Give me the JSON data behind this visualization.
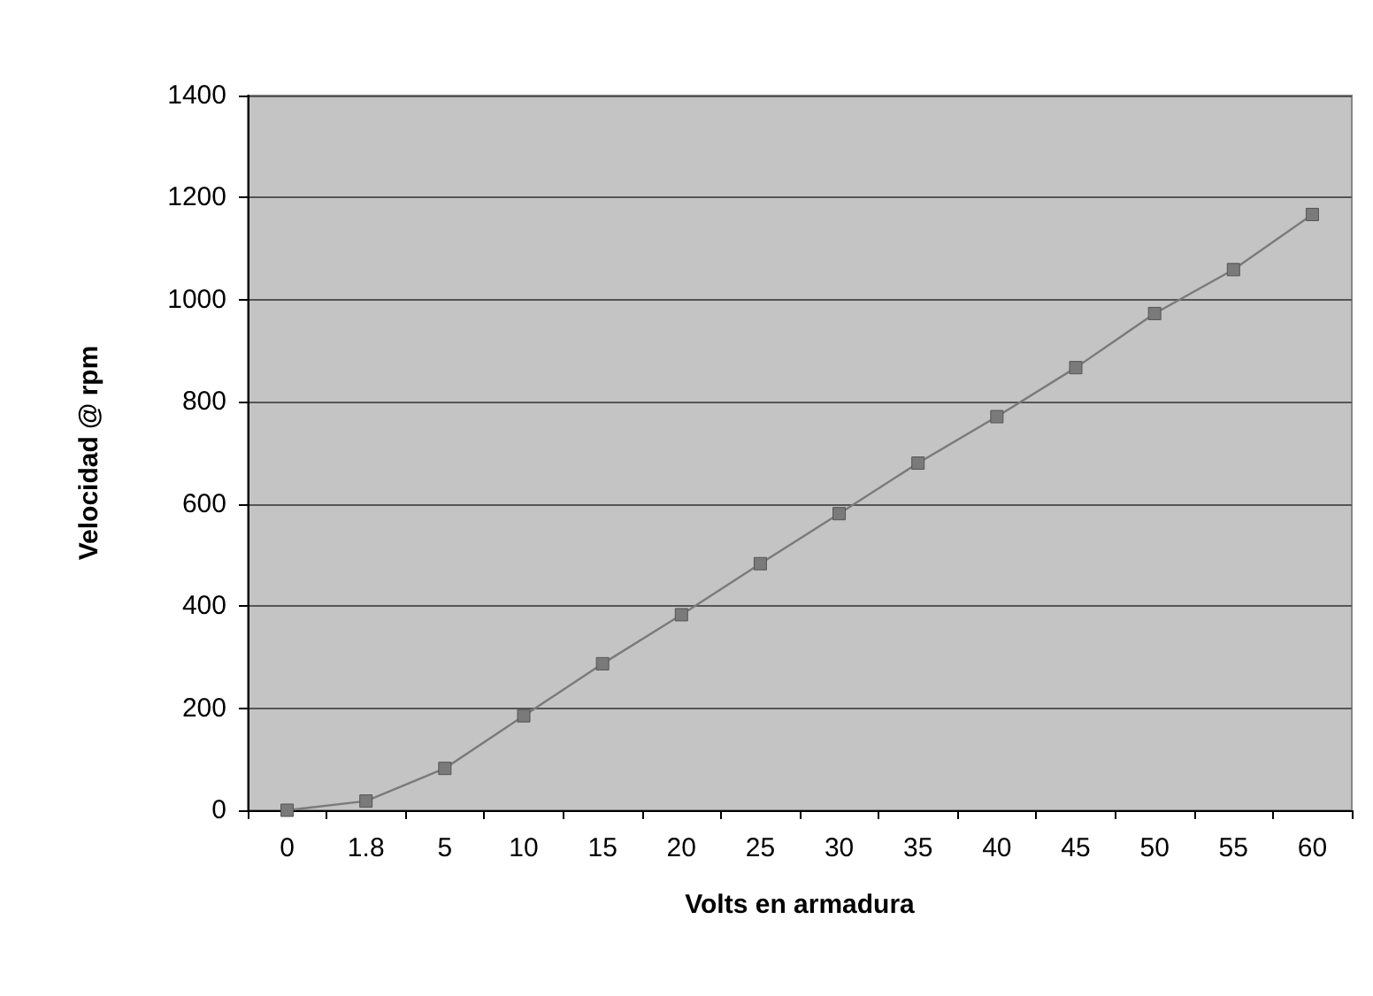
{
  "chart_data": {
    "type": "line",
    "xlabel": "Volts en armadura",
    "ylabel": "Velocidad @ rpm",
    "categories": [
      "0",
      "1.8",
      "5",
      "10",
      "15",
      "20",
      "25",
      "30",
      "35",
      "40",
      "45",
      "50",
      "55",
      "60"
    ],
    "series": [
      {
        "color": "#7a7a7a",
        "values": [
          0,
          18,
          82,
          185,
          287,
          383,
          483,
          581,
          680,
          771,
          867,
          973,
          1059,
          1167
        ]
      }
    ],
    "ylim": [
      0,
      1400
    ],
    "yticks": [
      0,
      200,
      400,
      600,
      800,
      1000,
      1200,
      1400
    ],
    "grid": "y",
    "marker": "square",
    "line_style": "solid"
  }
}
